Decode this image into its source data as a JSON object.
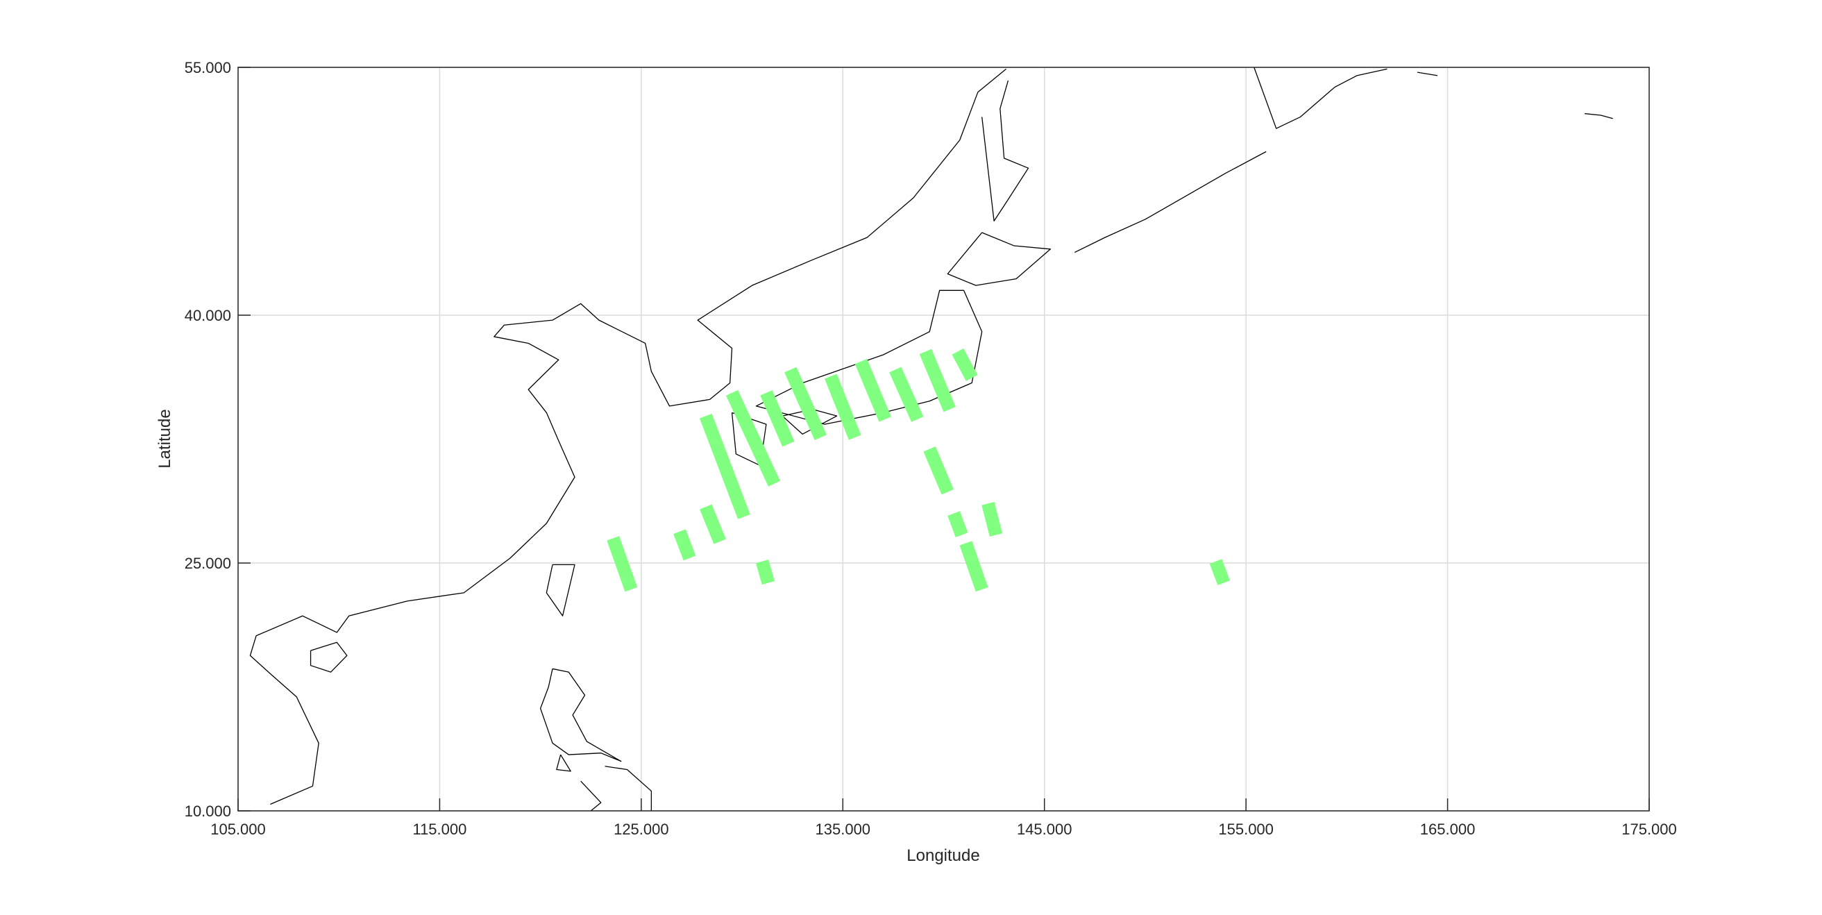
{
  "chart_data": {
    "type": "map",
    "xlabel": "Longitude",
    "ylabel": "Latitude",
    "xlim": [
      105,
      175
    ],
    "ylim": [
      10,
      55
    ],
    "xticks": [
      105,
      115,
      125,
      135,
      145,
      155,
      165,
      175
    ],
    "yticks": [
      10,
      25,
      40,
      55
    ],
    "xtick_labels": [
      "105.000",
      "115.000",
      "125.000",
      "135.000",
      "145.000",
      "155.000",
      "165.000",
      "175.000"
    ],
    "ytick_labels": [
      "10.000",
      "25.000",
      "40.000",
      "55.000"
    ],
    "grid": true,
    "swath_color": "#80ff80",
    "coast_color": "#000000",
    "swath_width_deg": 0.65,
    "swaths": [
      [
        [
          123.6,
          26.5
        ],
        [
          124.5,
          23.4
        ]
      ],
      [
        [
          126.9,
          26.9
        ],
        [
          127.4,
          25.3
        ]
      ],
      [
        [
          128.2,
          28.4
        ],
        [
          128.9,
          26.3
        ]
      ],
      [
        [
          128.2,
          33.9
        ],
        [
          130.1,
          27.8
        ]
      ],
      [
        [
          129.5,
          35.3
        ],
        [
          131.6,
          29.8
        ]
      ],
      [
        [
          131.2,
          35.3
        ],
        [
          132.3,
          32.2
        ]
      ],
      [
        [
          132.4,
          36.7
        ],
        [
          133.9,
          32.6
        ]
      ],
      [
        [
          134.4,
          36.3
        ],
        [
          135.6,
          32.6
        ]
      ],
      [
        [
          135.9,
          37.2
        ],
        [
          137.1,
          33.7
        ]
      ],
      [
        [
          137.6,
          36.7
        ],
        [
          138.7,
          33.7
        ]
      ],
      [
        [
          139.1,
          37.8
        ],
        [
          140.3,
          34.3
        ]
      ],
      [
        [
          140.7,
          37.8
        ],
        [
          141.4,
          36.2
        ]
      ],
      [
        [
          139.3,
          31.9
        ],
        [
          140.2,
          29.3
        ]
      ],
      [
        [
          140.5,
          28.0
        ],
        [
          140.9,
          26.7
        ]
      ],
      [
        [
          142.2,
          28.6
        ],
        [
          142.6,
          26.7
        ]
      ],
      [
        [
          141.1,
          26.2
        ],
        [
          141.9,
          23.4
        ]
      ],
      [
        [
          131.0,
          25.1
        ],
        [
          131.3,
          23.8
        ]
      ],
      [
        [
          153.5,
          25.1
        ],
        [
          153.9,
          23.8
        ]
      ]
    ],
    "coastlines": [
      [
        [
          106.6,
          10.4
        ],
        [
          108.7,
          11.5
        ],
        [
          109.0,
          14.1
        ],
        [
          107.9,
          16.9
        ],
        [
          106.6,
          18.3
        ],
        [
          105.6,
          19.4
        ],
        [
          105.9,
          20.6
        ],
        [
          108.2,
          21.8
        ],
        [
          109.9,
          20.8
        ],
        [
          110.5,
          21.8
        ],
        [
          113.4,
          22.7
        ],
        [
          116.2,
          23.2
        ],
        [
          118.5,
          25.3
        ],
        [
          120.3,
          27.4
        ],
        [
          121.7,
          30.2
        ],
        [
          120.9,
          32.4
        ],
        [
          120.3,
          34.1
        ],
        [
          119.4,
          35.5
        ],
        [
          120.9,
          37.3
        ],
        [
          119.4,
          38.3
        ],
        [
          117.7,
          38.7
        ],
        [
          118.2,
          39.4
        ],
        [
          120.6,
          39.7
        ],
        [
          122.0,
          40.7
        ],
        [
          122.9,
          39.7
        ],
        [
          125.2,
          38.3
        ],
        [
          125.5,
          36.6
        ],
        [
          126.4,
          34.5
        ],
        [
          128.4,
          34.9
        ],
        [
          129.4,
          35.9
        ],
        [
          129.5,
          38.0
        ],
        [
          127.8,
          39.7
        ],
        [
          130.5,
          41.8
        ],
        [
          133.4,
          43.3
        ],
        [
          136.2,
          44.7
        ],
        [
          138.5,
          47.1
        ],
        [
          140.8,
          50.6
        ],
        [
          141.7,
          53.5
        ],
        [
          143.1,
          54.9
        ]
      ],
      [
        [
          141.9,
          52.0
        ],
        [
          142.5,
          45.7
        ],
        [
          143.2,
          47.0
        ],
        [
          144.2,
          48.9
        ],
        [
          143.0,
          49.5
        ],
        [
          142.8,
          52.5
        ],
        [
          143.2,
          54.2
        ]
      ],
      [
        [
          141.9,
          45.0
        ],
        [
          143.5,
          44.2
        ],
        [
          145.3,
          44.0
        ],
        [
          143.6,
          42.2
        ],
        [
          141.6,
          41.8
        ],
        [
          140.2,
          42.5
        ],
        [
          141.9,
          45.0
        ]
      ],
      [
        [
          141.0,
          41.5
        ],
        [
          141.9,
          39.0
        ],
        [
          141.4,
          35.9
        ],
        [
          139.3,
          34.8
        ],
        [
          137.0,
          34.1
        ],
        [
          134.1,
          33.4
        ],
        [
          130.7,
          34.5
        ],
        [
          133.0,
          35.9
        ],
        [
          137.0,
          37.6
        ],
        [
          139.3,
          39.0
        ],
        [
          139.8,
          41.5
        ],
        [
          141.0,
          41.5
        ]
      ],
      [
        [
          129.5,
          34.1
        ],
        [
          131.2,
          33.4
        ],
        [
          130.9,
          30.9
        ],
        [
          129.7,
          31.6
        ],
        [
          129.5,
          34.1
        ]
      ],
      [
        [
          132.0,
          33.9
        ],
        [
          133.5,
          34.3
        ],
        [
          134.7,
          33.9
        ],
        [
          133.0,
          32.8
        ],
        [
          132.0,
          33.9
        ]
      ],
      [
        [
          120.6,
          24.9
        ],
        [
          121.7,
          24.9
        ],
        [
          121.1,
          21.8
        ],
        [
          120.3,
          23.2
        ],
        [
          120.6,
          24.9
        ]
      ],
      [
        [
          108.6,
          19.7
        ],
        [
          109.9,
          20.2
        ],
        [
          110.4,
          19.4
        ],
        [
          109.6,
          18.4
        ],
        [
          108.6,
          18.8
        ],
        [
          108.6,
          19.7
        ]
      ],
      [
        [
          120.6,
          18.6
        ],
        [
          121.4,
          18.4
        ],
        [
          122.2,
          17.0
        ],
        [
          121.6,
          15.8
        ],
        [
          122.3,
          14.2
        ],
        [
          124.0,
          13.0
        ],
        [
          123.0,
          13.5
        ],
        [
          121.4,
          13.4
        ],
        [
          120.6,
          14.1
        ],
        [
          120.0,
          16.2
        ],
        [
          120.4,
          17.5
        ],
        [
          120.6,
          18.6
        ]
      ],
      [
        [
          121.0,
          13.4
        ],
        [
          121.5,
          12.4
        ],
        [
          120.8,
          12.5
        ],
        [
          121.0,
          13.4
        ]
      ],
      [
        [
          123.2,
          12.7
        ],
        [
          124.3,
          12.5
        ],
        [
          125.5,
          11.2
        ],
        [
          125.5,
          10.0
        ]
      ],
      [
        [
          122.0,
          11.8
        ],
        [
          123.0,
          10.5
        ],
        [
          122.5,
          10.0
        ]
      ],
      [
        [
          155.4,
          55.0
        ],
        [
          156.5,
          51.3
        ],
        [
          157.7,
          52.0
        ],
        [
          159.4,
          53.8
        ],
        [
          160.5,
          54.5
        ],
        [
          162.0,
          54.9
        ]
      ],
      [
        [
          163.5,
          54.7
        ],
        [
          164.5,
          54.5
        ]
      ],
      [
        [
          171.8,
          52.2
        ],
        [
          172.6,
          52.1
        ],
        [
          173.2,
          51.9
        ]
      ],
      [
        [
          146.5,
          43.8
        ],
        [
          148.0,
          44.7
        ],
        [
          150.0,
          45.8
        ],
        [
          152.0,
          47.2
        ],
        [
          154.0,
          48.6
        ],
        [
          156.0,
          49.9
        ]
      ]
    ]
  }
}
